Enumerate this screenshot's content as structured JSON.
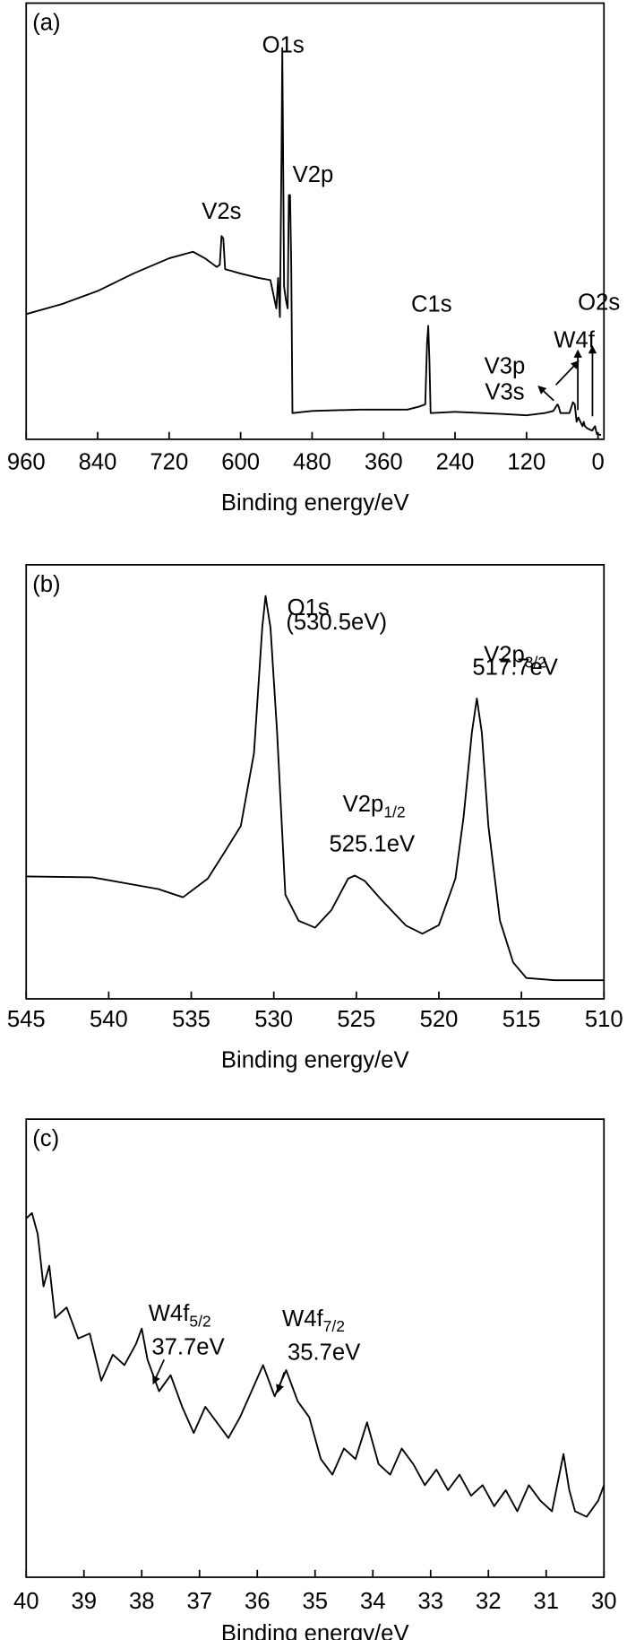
{
  "chart_data": [
    {
      "type": "line",
      "label": "(a)",
      "x_label": "Binding energy/eV",
      "xlim": [
        960,
        -10
      ],
      "xticks": [
        960,
        840,
        720,
        600,
        480,
        360,
        240,
        120,
        0
      ],
      "ylim": [
        0,
        100
      ],
      "x": [
        960,
        900,
        840,
        780,
        720,
        680,
        660,
        640,
        635,
        632,
        629,
        626,
        600,
        570,
        550,
        540,
        537,
        534,
        531,
        530,
        529,
        527,
        524,
        521,
        519,
        517,
        515,
        513,
        480,
        400,
        320,
        300,
        290,
        287,
        285,
        283,
        281,
        240,
        160,
        120,
        90,
        75,
        68,
        66,
        63,
        48,
        42,
        39,
        36,
        33,
        26,
        24,
        22,
        18,
        10,
        5,
        2,
        -5
      ],
      "values": [
        28.7,
        31,
        34,
        38,
        41.5,
        43,
        41.5,
        39.5,
        40,
        46.6,
        46,
        39,
        38,
        37,
        36.5,
        30,
        37,
        28,
        70,
        89.7,
        72,
        35,
        32,
        30,
        56,
        56,
        40,
        6,
        6.5,
        6.8,
        6.8,
        7.5,
        8,
        22,
        26,
        18,
        6,
        6.3,
        5.8,
        5.5,
        6,
        6.5,
        8,
        7.5,
        6,
        6,
        8.5,
        8,
        4,
        5,
        3,
        4,
        3,
        2.5,
        2,
        3,
        1.2,
        1
      ],
      "color": "#000000",
      "annotations": [
        {
          "text": "O1s"
        },
        {
          "text": "V2p"
        },
        {
          "text": "V2s"
        },
        {
          "text": "C1s"
        },
        {
          "text": "O2s"
        },
        {
          "text": "W4f"
        },
        {
          "text": "V3p"
        },
        {
          "text": "V3s"
        }
      ]
    },
    {
      "type": "line",
      "label": "(b)",
      "x_label": "Binding energy/eV",
      "xlim": [
        545,
        510
      ],
      "xticks": [
        545,
        540,
        535,
        530,
        525,
        520,
        515,
        510
      ],
      "ylim": [
        0,
        100
      ],
      "x": [
        545,
        541,
        537,
        535.5,
        534,
        533,
        532,
        531.2,
        530.7,
        530.5,
        530.2,
        529.8,
        529.3,
        528.5,
        527.5,
        526.5,
        525.5,
        525.1,
        524.5,
        523.5,
        522,
        521,
        520,
        519,
        518.5,
        518,
        517.7,
        517.4,
        517,
        516.3,
        515.5,
        514.7,
        513,
        510
      ],
      "values": [
        28.2,
        28,
        25.3,
        23.4,
        27.7,
        33.7,
        39.8,
        56.6,
        85.5,
        92.8,
        85.5,
        61.4,
        24,
        18,
        16.4,
        20.5,
        27.7,
        28.4,
        27.2,
        22.9,
        16.9,
        15,
        17,
        27.7,
        42,
        61.4,
        69.2,
        61.4,
        39.8,
        18,
        8.4,
        4.8,
        4.3,
        4.3
      ],
      "color": "#000000",
      "annotations": [
        {
          "text": "O1s"
        },
        {
          "text": "(530.5eV)"
        },
        {
          "text": "V2p",
          "sub": "3/2"
        },
        {
          "text": "517.7eV"
        },
        {
          "text": "V2p",
          "sub": "1/2"
        },
        {
          "text": "525.1eV"
        }
      ]
    },
    {
      "type": "line",
      "label": "(c)",
      "x_label": "Binding energy/eV",
      "xlim": [
        40,
        30
      ],
      "xticks": [
        40,
        39,
        38,
        37,
        36,
        35,
        34,
        33,
        32,
        31,
        30
      ],
      "ylim": [
        0,
        100
      ],
      "x": [
        40,
        39.9,
        39.8,
        39.7,
        39.6,
        39.5,
        39.3,
        39.1,
        38.9,
        38.7,
        38.5,
        38.3,
        38.1,
        38.0,
        37.9,
        37.7,
        37.5,
        37.3,
        37.1,
        36.9,
        36.7,
        36.5,
        36.3,
        36.1,
        35.9,
        35.7,
        35.5,
        35.3,
        35.1,
        34.9,
        34.7,
        34.5,
        34.3,
        34.1,
        33.9,
        33.7,
        33.5,
        33.3,
        33.1,
        32.9,
        32.7,
        32.5,
        32.3,
        32.1,
        31.9,
        31.7,
        31.5,
        31.3,
        31.1,
        30.9,
        30.7,
        30.6,
        30.5,
        30.3,
        30.1,
        30.0
      ],
      "values": [
        78.3,
        79.5,
        74.9,
        63.5,
        68.0,
        56.6,
        58.9,
        52.1,
        53.2,
        42.9,
        48.6,
        46.3,
        50.9,
        54.3,
        47.5,
        40.6,
        44.1,
        37.2,
        31.5,
        37.2,
        33.8,
        30.4,
        34.9,
        40.6,
        46.3,
        39.5,
        45.2,
        38.4,
        34.9,
        25.8,
        22.4,
        28.1,
        25.8,
        33.8,
        24.7,
        22.4,
        28.1,
        24.7,
        20.1,
        23.5,
        19.0,
        22.4,
        17.8,
        20.1,
        15.5,
        19.0,
        14.4,
        20.1,
        16.7,
        14.4,
        26.9,
        19.0,
        14.4,
        13.2,
        16.7,
        20.1
      ],
      "color": "#000000",
      "annotations": [
        {
          "text": "W4f",
          "sub": "5/2"
        },
        {
          "text": "37.7eV"
        },
        {
          "text": "W4f",
          "sub": "7/2"
        },
        {
          "text": "35.7eV"
        }
      ]
    }
  ]
}
